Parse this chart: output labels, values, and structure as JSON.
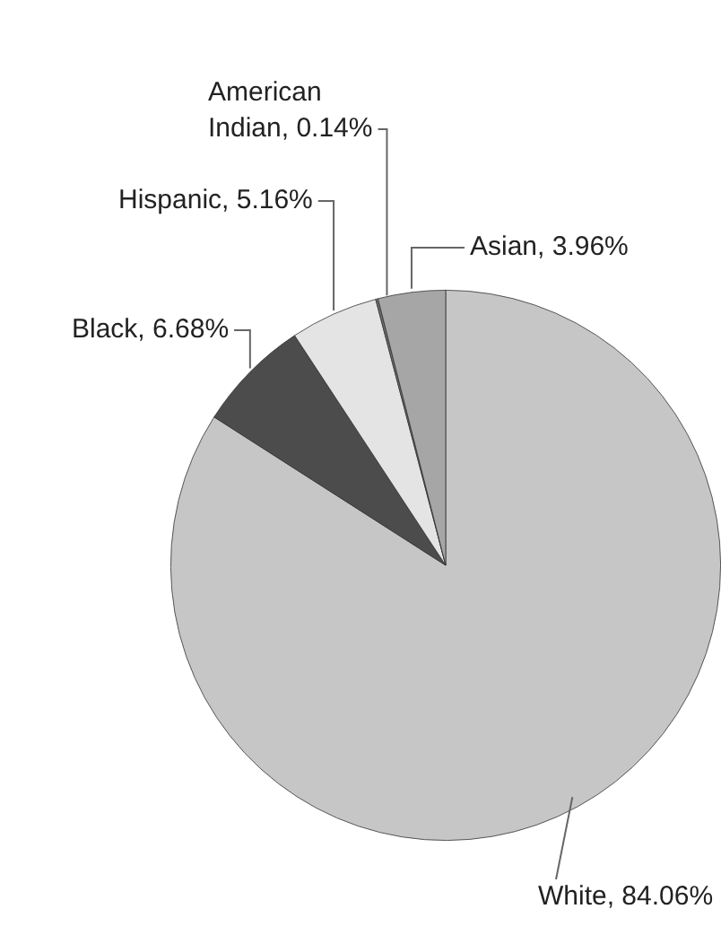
{
  "chart_data": {
    "type": "pie",
    "categories": [
      "White",
      "Black",
      "Hispanic",
      "American Indian",
      "Asian"
    ],
    "values": [
      84.06,
      6.68,
      5.16,
      0.14,
      3.96
    ],
    "value_labels": [
      "84.06%",
      "6.68%",
      "5.16%",
      "0.14%",
      "3.96%"
    ],
    "colors": [
      "#c6c6c6",
      "#4c4c4c",
      "#e4e4e4",
      "#6e6e6e",
      "#a6a6a6"
    ],
    "legend": false
  }
}
